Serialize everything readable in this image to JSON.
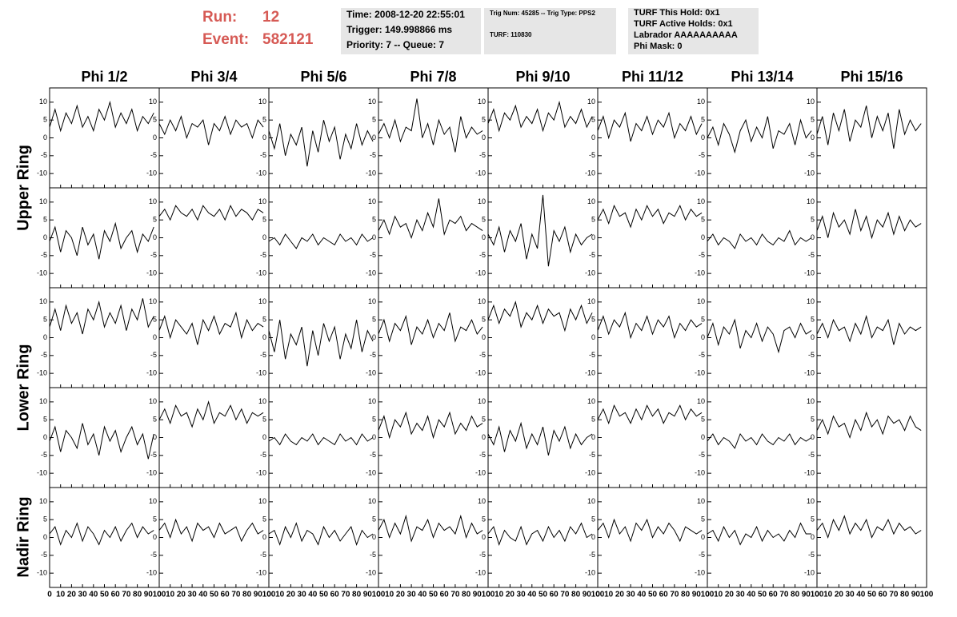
{
  "header": {
    "run_label": "Run:",
    "run": "12",
    "event_label": "Event:",
    "event": "582121",
    "info_1": [
      "Time: 2008-12-20 22:55:01",
      "Trigger: 149.998866 ms",
      "Priority: 7 -- Queue: 7"
    ],
    "info_2": [
      "Trig Num: 45285 -- Trig Type: PPS2",
      "TURF: 110830"
    ],
    "info_3": [
      "TURF This Hold: 0x1",
      "TURF Active Holds: 0x1",
      "Labrador AAAAAAAAAA",
      "Phi Mask: 0"
    ]
  },
  "chart_data": {
    "type": "line-grid",
    "column_labels": [
      "Phi 1/2",
      "Phi 3/4",
      "Phi 5/6",
      "Phi 7/8",
      "Phi 9/10",
      "Phi 11/12",
      "Phi 13/14",
      "Phi 15/16"
    ],
    "row_labels": [
      "Upper Ring",
      "Lower Ring",
      "Nadir Ring"
    ],
    "color": "#000000",
    "xlim": [
      0,
      100
    ],
    "xticks": [
      0,
      10,
      20,
      30,
      40,
      50,
      60,
      70,
      80,
      90,
      100
    ],
    "ylim": [
      -14,
      14
    ],
    "yticks": [
      -10,
      -5,
      0,
      5,
      10
    ],
    "x": [
      0,
      5,
      10,
      15,
      20,
      25,
      30,
      35,
      40,
      45,
      50,
      55,
      60,
      65,
      70,
      75,
      80,
      85,
      90,
      95
    ],
    "values": [
      [
        [
          3,
          8,
          2,
          7,
          4,
          9,
          3,
          6,
          2,
          8,
          5,
          10,
          3,
          7,
          4,
          8,
          2,
          6,
          4,
          7
        ],
        [
          4,
          1,
          5,
          2,
          6,
          0,
          4,
          3,
          5,
          -2,
          4,
          2,
          6,
          1,
          5,
          3,
          4,
          0,
          5,
          3
        ],
        [
          2,
          -3,
          4,
          -5,
          1,
          -2,
          3,
          -8,
          2,
          -4,
          5,
          -1,
          3,
          -6,
          1,
          -3,
          4,
          -2,
          2,
          -1
        ],
        [
          1,
          4,
          0,
          5,
          -1,
          3,
          2,
          11,
          0,
          4,
          -2,
          5,
          1,
          3,
          -4,
          6,
          0,
          3,
          1,
          2
        ],
        [
          4,
          8,
          2,
          7,
          5,
          9,
          3,
          6,
          4,
          8,
          2,
          7,
          5,
          10,
          3,
          6,
          4,
          8,
          3,
          6
        ],
        [
          2,
          6,
          0,
          5,
          3,
          7,
          -1,
          4,
          2,
          6,
          1,
          5,
          3,
          7,
          0,
          4,
          2,
          6,
          1,
          4
        ],
        [
          0,
          3,
          -2,
          4,
          1,
          -4,
          2,
          5,
          -1,
          3,
          0,
          6,
          -3,
          2,
          1,
          4,
          -2,
          5,
          0,
          2
        ],
        [
          1,
          6,
          -2,
          7,
          2,
          8,
          -1,
          5,
          3,
          9,
          0,
          6,
          2,
          7,
          -3,
          8,
          1,
          5,
          2,
          4
        ]
      ],
      [
        [
          -1,
          3,
          -4,
          2,
          0,
          -5,
          3,
          -2,
          1,
          -6,
          2,
          -1,
          4,
          -3,
          0,
          2,
          -4,
          1,
          -1,
          3
        ],
        [
          6,
          8,
          5,
          9,
          7,
          6,
          8,
          5,
          9,
          7,
          6,
          8,
          5,
          9,
          6,
          8,
          7,
          5,
          8,
          7
        ],
        [
          -1,
          0,
          -2,
          1,
          -1,
          -3,
          0,
          -1,
          1,
          -2,
          0,
          -1,
          -2,
          1,
          -1,
          0,
          -2,
          1,
          -1,
          0
        ],
        [
          2,
          5,
          1,
          6,
          3,
          4,
          0,
          5,
          2,
          7,
          3,
          11,
          1,
          5,
          4,
          6,
          2,
          4,
          3,
          2
        ],
        [
          1,
          -2,
          3,
          -4,
          2,
          -1,
          4,
          -6,
          1,
          -3,
          12,
          -8,
          2,
          -1,
          3,
          -4,
          1,
          -2,
          0,
          1
        ],
        [
          5,
          8,
          4,
          9,
          6,
          7,
          3,
          8,
          5,
          9,
          6,
          8,
          4,
          7,
          6,
          9,
          5,
          8,
          6,
          7
        ],
        [
          -1,
          1,
          -2,
          0,
          -1,
          -3,
          1,
          -1,
          0,
          -2,
          1,
          -1,
          -2,
          0,
          -1,
          2,
          -2,
          0,
          -1,
          0
        ],
        [
          2,
          6,
          0,
          7,
          3,
          5,
          1,
          8,
          2,
          6,
          0,
          5,
          3,
          7,
          1,
          6,
          2,
          5,
          3,
          4
        ]
      ],
      [
        [
          3,
          8,
          2,
          9,
          4,
          7,
          1,
          8,
          5,
          10,
          3,
          7,
          4,
          9,
          2,
          8,
          5,
          11,
          3,
          6
        ],
        [
          2,
          6,
          0,
          5,
          3,
          1,
          4,
          -2,
          5,
          2,
          6,
          1,
          4,
          3,
          7,
          0,
          5,
          2,
          4,
          3
        ],
        [
          2,
          -4,
          5,
          -6,
          1,
          -2,
          3,
          -8,
          2,
          -5,
          4,
          -1,
          3,
          -6,
          1,
          -3,
          5,
          -4,
          2,
          -1
        ],
        [
          1,
          5,
          -1,
          4,
          2,
          6,
          -2,
          3,
          1,
          5,
          0,
          4,
          2,
          7,
          -1,
          3,
          2,
          5,
          1,
          3
        ],
        [
          5,
          9,
          4,
          8,
          6,
          10,
          3,
          7,
          5,
          9,
          4,
          8,
          6,
          7,
          2,
          8,
          5,
          9,
          4,
          7
        ],
        [
          2,
          6,
          1,
          5,
          3,
          7,
          0,
          4,
          2,
          6,
          1,
          5,
          3,
          6,
          0,
          4,
          2,
          5,
          3,
          4
        ],
        [
          0,
          4,
          -2,
          3,
          1,
          5,
          -3,
          2,
          0,
          4,
          -1,
          3,
          1,
          -4,
          2,
          3,
          0,
          4,
          1,
          2
        ],
        [
          1,
          4,
          0,
          5,
          2,
          3,
          -1,
          4,
          1,
          6,
          0,
          3,
          2,
          5,
          -2,
          4,
          1,
          3,
          2,
          3
        ]
      ],
      [
        [
          -1,
          3,
          -4,
          2,
          0,
          -3,
          4,
          -2,
          1,
          -5,
          3,
          -1,
          2,
          -4,
          0,
          3,
          -2,
          1,
          -6,
          1
        ],
        [
          5,
          8,
          4,
          9,
          6,
          7,
          3,
          8,
          5,
          10,
          4,
          7,
          6,
          9,
          5,
          8,
          4,
          7,
          6,
          7
        ],
        [
          -1,
          0,
          -2,
          1,
          -1,
          -2,
          0,
          -1,
          1,
          -2,
          0,
          -1,
          -2,
          1,
          -1,
          0,
          -2,
          1,
          -1,
          0
        ],
        [
          2,
          6,
          0,
          5,
          3,
          7,
          1,
          4,
          2,
          6,
          0,
          5,
          3,
          7,
          1,
          4,
          2,
          6,
          3,
          4
        ],
        [
          1,
          -2,
          3,
          -4,
          2,
          -1,
          4,
          -3,
          1,
          -2,
          3,
          -5,
          2,
          -1,
          3,
          -3,
          1,
          -2,
          0,
          1
        ],
        [
          5,
          8,
          4,
          9,
          6,
          7,
          4,
          8,
          5,
          9,
          6,
          8,
          4,
          7,
          6,
          9,
          5,
          8,
          6,
          7
        ],
        [
          -1,
          1,
          -2,
          0,
          -1,
          -3,
          1,
          -1,
          0,
          -2,
          1,
          -1,
          -2,
          0,
          -1,
          1,
          -2,
          0,
          -1,
          0
        ],
        [
          2,
          5,
          1,
          6,
          3,
          4,
          0,
          5,
          2,
          7,
          3,
          5,
          1,
          6,
          4,
          5,
          2,
          6,
          3,
          2
        ]
      ],
      [
        [
          1,
          3,
          -2,
          2,
          0,
          4,
          -1,
          3,
          1,
          -2,
          2,
          0,
          3,
          -1,
          2,
          4,
          0,
          3,
          1,
          2
        ],
        [
          2,
          4,
          0,
          5,
          1,
          3,
          -1,
          4,
          2,
          3,
          0,
          4,
          1,
          2,
          3,
          -1,
          2,
          4,
          1,
          2
        ],
        [
          1,
          2,
          -2,
          3,
          0,
          4,
          -1,
          2,
          1,
          -2,
          3,
          0,
          2,
          -1,
          1,
          3,
          -2,
          2,
          0,
          1
        ],
        [
          2,
          5,
          0,
          4,
          1,
          6,
          -1,
          3,
          2,
          5,
          0,
          4,
          2,
          3,
          1,
          6,
          0,
          4,
          1,
          2
        ],
        [
          1,
          3,
          -2,
          2,
          0,
          -1,
          3,
          -2,
          1,
          2,
          -1,
          3,
          0,
          2,
          -1,
          3,
          1,
          4,
          0,
          1
        ],
        [
          2,
          4,
          0,
          5,
          1,
          3,
          -1,
          4,
          2,
          5,
          0,
          3,
          1,
          4,
          2,
          -1,
          3,
          2,
          1,
          2
        ],
        [
          1,
          2,
          -1,
          3,
          0,
          2,
          -2,
          1,
          0,
          3,
          -1,
          2,
          0,
          1,
          -1,
          2,
          0,
          4,
          1,
          1
        ],
        [
          2,
          4,
          0,
          5,
          2,
          6,
          1,
          4,
          2,
          5,
          0,
          3,
          2,
          5,
          1,
          4,
          2,
          3,
          1,
          2
        ]
      ]
    ]
  }
}
